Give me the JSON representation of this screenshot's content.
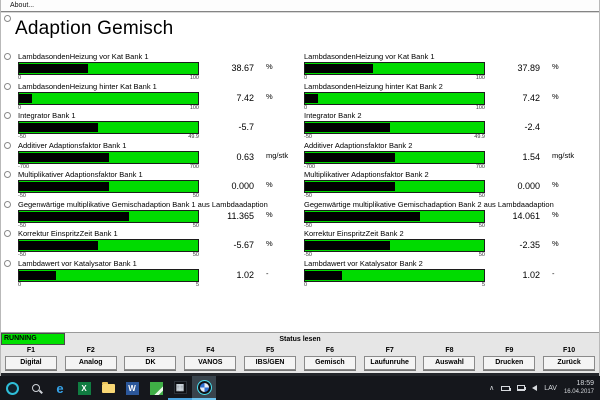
{
  "menu": {
    "about_label": "About..."
  },
  "title": "Adaption Gemisch",
  "colors": {
    "bar_green": "#00db00",
    "bar_fill": "#000000",
    "running_green": "#00e000",
    "taskbar_bg": "#15171c"
  },
  "columns": {
    "left": {
      "rows": [
        {
          "label": "LambdasondenHeizung vor Kat Bank 1",
          "value": "38.67",
          "unit": "%",
          "min": "0",
          "max": "100",
          "fill_pct": 38.7
        },
        {
          "label": "LambdasondenHeizung hinter Kat Bank 1",
          "value": "7.42",
          "unit": "%",
          "min": "0",
          "max": "100",
          "fill_pct": 7.4
        },
        {
          "label": "Integrator Bank 1",
          "value": "-5.7",
          "unit": "",
          "min": "-50",
          "max": "49.9",
          "fill_pct": 44.3
        },
        {
          "label": "Additiver Adaptionsfaktor Bank 1",
          "value": "0.63",
          "unit": "mg/stk",
          "min": "-700",
          "max": "700",
          "fill_pct": 50.0
        },
        {
          "label": "Multiplikativer Adaptionsfaktor Bank 1",
          "value": "0.000",
          "unit": "%",
          "min": "-50",
          "max": "50",
          "fill_pct": 50.0
        },
        {
          "label": "Gegenwärtige multiplikative Gemischadaption Bank 1 aus Lambdaadaption",
          "value": "11.365",
          "unit": "%",
          "min": "-50",
          "max": "50",
          "fill_pct": 61.4
        },
        {
          "label": "Korrektur EinspritzZeit Bank 1",
          "value": "-5.67",
          "unit": "%",
          "min": "-50",
          "max": "50",
          "fill_pct": 44.3
        },
        {
          "label": "Lambdawert vor Katalysator Bank 1",
          "value": "1.02",
          "unit": "-",
          "min": "0",
          "max": "5",
          "fill_pct": 20.4
        }
      ]
    },
    "right": {
      "rows": [
        {
          "label": "LambdasondenHeizung vor Kat Bank 1",
          "value": "37.89",
          "unit": "%",
          "min": "0",
          "max": "100",
          "fill_pct": 37.9
        },
        {
          "label": "LambdasondenHeizung hinter Kat Bank 2",
          "value": "7.42",
          "unit": "%",
          "min": "0",
          "max": "100",
          "fill_pct": 7.4
        },
        {
          "label": "Integrator Bank 2",
          "value": "-2.4",
          "unit": "",
          "min": "-50",
          "max": "49.9",
          "fill_pct": 47.6
        },
        {
          "label": "Additiver Adaptionsfaktor Bank 2",
          "value": "1.54",
          "unit": "mg/stk",
          "min": "-700",
          "max": "700",
          "fill_pct": 50.1
        },
        {
          "label": "Multiplikativer Adaptionsfaktor Bank 2",
          "value": "0.000",
          "unit": "%",
          "min": "-50",
          "max": "50",
          "fill_pct": 50.0
        },
        {
          "label": "Gegenwärtige multiplikative Gemischadaption Bank 2 aus Lambdaadaption",
          "value": "14.061",
          "unit": "%",
          "min": "-50",
          "max": "50",
          "fill_pct": 64.1
        },
        {
          "label": "Korrektur EinspritzZeit Bank 2",
          "value": "-2.35",
          "unit": "%",
          "min": "-50",
          "max": "50",
          "fill_pct": 47.7
        },
        {
          "label": "Lambdawert vor Katalysator Bank 2",
          "value": "1.02",
          "unit": "-",
          "min": "0",
          "max": "5",
          "fill_pct": 20.4
        }
      ]
    }
  },
  "status": {
    "running_label": "RUNNING",
    "message": "Status lesen"
  },
  "fkeys": [
    {
      "key": "F1",
      "label": "Digital"
    },
    {
      "key": "F2",
      "label": "Analog"
    },
    {
      "key": "F3",
      "label": "DK"
    },
    {
      "key": "F4",
      "label": "VANOS"
    },
    {
      "key": "F5",
      "label": "IBS/GEN"
    },
    {
      "key": "F6",
      "label": "Gemisch"
    },
    {
      "key": "F7",
      "label": "Laufunruhe"
    },
    {
      "key": "F8",
      "label": "Auswahl"
    },
    {
      "key": "F9",
      "label": "Drucken"
    },
    {
      "key": "F10",
      "label": "Zurück"
    }
  ],
  "taskbar": {
    "edge_glyph": "e",
    "excel_glyph": "X",
    "word_glyph": "W",
    "tool32_glyph": "▦",
    "tray": {
      "chevron": "∧",
      "language": "LAV",
      "time": "18:59",
      "date": "16.04.2017"
    }
  }
}
